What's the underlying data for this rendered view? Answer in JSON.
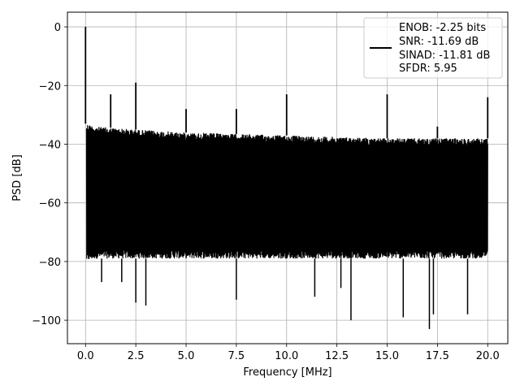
{
  "chart_data": {
    "type": "line",
    "title": "",
    "xlabel": "Frequency [MHz]",
    "ylabel": "PSD [dB]",
    "xlim": [
      -0.9,
      21.0
    ],
    "ylim": [
      -108,
      5
    ],
    "xticks": [
      0.0,
      2.5,
      5.0,
      7.5,
      10.0,
      12.5,
      15.0,
      17.5,
      20.0
    ],
    "xtick_labels": [
      "0.0",
      "2.5",
      "5.0",
      "7.5",
      "10.0",
      "12.5",
      "15.0",
      "17.5",
      "20.0"
    ],
    "yticks": [
      0,
      -20,
      -40,
      -60,
      -80,
      -100
    ],
    "ytick_labels": [
      "0",
      "−20",
      "−40",
      "−60",
      "−80",
      "−100"
    ],
    "grid": true,
    "legend": {
      "placement": "top-right",
      "lines": [
        "ENOB: -2.25 bits",
        "SNR: -11.69 dB",
        "SINAD: -11.81 dB",
        "SFDR: 5.95"
      ]
    },
    "series": [
      {
        "color": "#000000",
        "noise_floor": {
          "x": [
            0.05,
            0.5,
            2.5,
            5.0,
            10.0,
            15.0,
            20.0
          ],
          "upper": [
            -33,
            -34,
            -35,
            -36,
            -37,
            -38,
            -38
          ],
          "lower": [
            -80,
            -79,
            -79,
            -79,
            -79,
            -79,
            -79
          ]
        },
        "spurs": [
          {
            "x": 0.0,
            "y": 0
          },
          {
            "x": 1.25,
            "y": -23
          },
          {
            "x": 2.5,
            "y": -19
          },
          {
            "x": 5.0,
            "y": -28
          },
          {
            "x": 7.5,
            "y": -28
          },
          {
            "x": 10.0,
            "y": -23
          },
          {
            "x": 15.0,
            "y": -23
          },
          {
            "x": 17.5,
            "y": -34
          },
          {
            "x": 20.0,
            "y": -24
          }
        ],
        "dips": [
          {
            "x": 2.5,
            "y": -94
          },
          {
            "x": 3.0,
            "y": -95
          },
          {
            "x": 13.2,
            "y": -100
          },
          {
            "x": 15.8,
            "y": -99
          },
          {
            "x": 17.1,
            "y": -103
          },
          {
            "x": 17.3,
            "y": -98
          },
          {
            "x": 19.0,
            "y": -98
          },
          {
            "x": 0.8,
            "y": -87
          },
          {
            "x": 1.8,
            "y": -87
          },
          {
            "x": 7.5,
            "y": -93
          },
          {
            "x": 11.4,
            "y": -92
          },
          {
            "x": 12.7,
            "y": -89
          }
        ]
      }
    ]
  }
}
